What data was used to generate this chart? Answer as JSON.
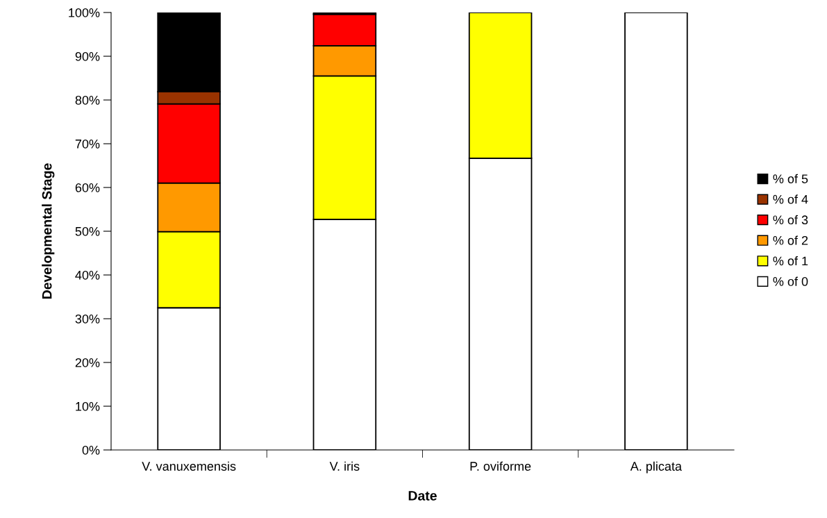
{
  "chart_data": {
    "type": "bar",
    "stacked": true,
    "xlabel": "Date",
    "ylabel": "Developmental Stage",
    "categories": [
      "V. vanuxemensis",
      "V. iris",
      "P. oviforme",
      "A. plicata"
    ],
    "series": [
      {
        "name": "% of 0",
        "color": "#ffffff",
        "values": [
          32.5,
          52.7,
          66.7,
          100
        ]
      },
      {
        "name": "% of 1",
        "color": "#ffff00",
        "values": [
          17.4,
          32.8,
          33.3,
          null
        ]
      },
      {
        "name": "% of 2",
        "color": "#ff9900",
        "values": [
          11.1,
          6.9,
          null,
          null
        ]
      },
      {
        "name": "% of 3",
        "color": "#ff0000",
        "values": [
          18.1,
          7.2,
          null,
          null
        ]
      },
      {
        "name": "% of 4",
        "color": "#993300",
        "values": [
          2.8,
          null,
          null,
          null
        ]
      },
      {
        "name": "% of 5",
        "color": "#000000",
        "values": [
          18.1,
          0.4,
          null,
          null
        ]
      }
    ],
    "ylim": [
      0,
      100
    ],
    "yticks": [
      {
        "value": 0,
        "label": "0%"
      },
      {
        "value": 10,
        "label": "10%"
      },
      {
        "value": 20,
        "label": "20%"
      },
      {
        "value": 30,
        "label": "30%"
      },
      {
        "value": 40,
        "label": "40%"
      },
      {
        "value": 50,
        "label": "50%"
      },
      {
        "value": 60,
        "label": "60%"
      },
      {
        "value": 70,
        "label": "70%"
      },
      {
        "value": 80,
        "label": "80%"
      },
      {
        "value": 90,
        "label": "90%"
      },
      {
        "value": 100,
        "label": "100%"
      }
    ],
    "grid": false,
    "legend": "right"
  }
}
